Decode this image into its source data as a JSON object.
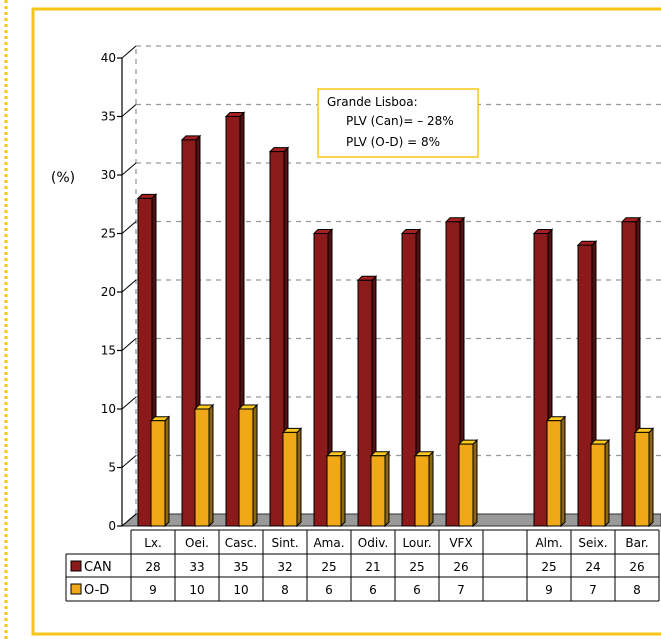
{
  "chart_data": {
    "type": "bar",
    "ylabel": "(%)",
    "ylim": [
      0,
      40
    ],
    "yticks": [
      0,
      5,
      10,
      15,
      20,
      25,
      30,
      35,
      40
    ],
    "categories": [
      "Lx.",
      "Oei.",
      "Casc.",
      "Sint.",
      "Ama.",
      "Odiv.",
      "Lour.",
      "VFX",
      "",
      "Alm.",
      "Seix.",
      "Bar."
    ],
    "series": [
      {
        "name": "CAN",
        "color": "#8b1a1a",
        "values": [
          28,
          33,
          35,
          32,
          25,
          21,
          25,
          26,
          null,
          25,
          24,
          26
        ]
      },
      {
        "name": "O-D",
        "color": "#f0a818",
        "values": [
          9,
          10,
          10,
          8,
          6,
          6,
          6,
          7,
          null,
          9,
          7,
          8
        ]
      }
    ],
    "annotation": {
      "title": "Grande Lisboa:",
      "lines": [
        "PLV (Can)= – 28%",
        "PLV (O-D) = 8%"
      ]
    },
    "legend": "table-below",
    "grid": true
  },
  "colors": {
    "frame": "#f5c518",
    "grid": "#999999"
  }
}
